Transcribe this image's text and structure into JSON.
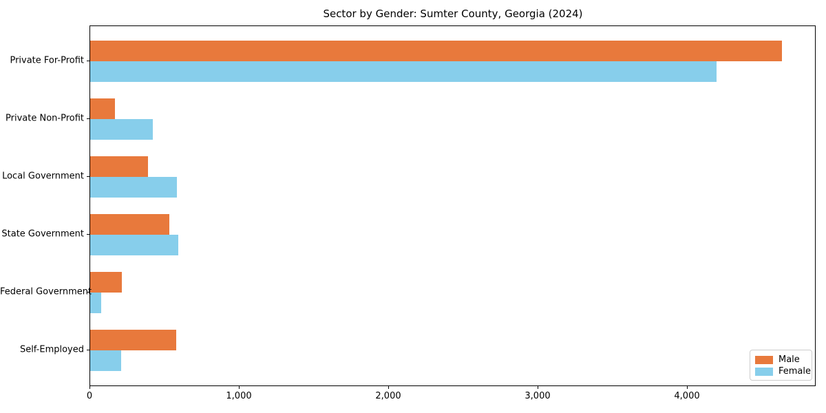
{
  "title": "Sector by Gender: Sumter County, Georgia (2024)",
  "colors": {
    "male_bar": "#e8793c",
    "female_bar": "#87ceeb",
    "axis": "#000000",
    "text": "#000000",
    "legend_border": "#cccccc",
    "background": "#ffffff"
  },
  "chart_data": {
    "type": "bar",
    "orientation": "horizontal",
    "title": "Sector by Gender: Sumter County, Georgia (2024)",
    "xlabel": "",
    "ylabel": "",
    "categories": [
      "Private For-Profit",
      "Private Non-Profit",
      "Local Government",
      "State Government",
      "Federal Government",
      "Self-Employed"
    ],
    "series": [
      {
        "name": "Male",
        "color": "#e8793c",
        "values": [
          4630,
          165,
          385,
          530,
          210,
          575
        ]
      },
      {
        "name": "Female",
        "color": "#87ceeb",
        "values": [
          4190,
          420,
          580,
          590,
          75,
          205
        ]
      }
    ],
    "xlim": [
      0,
      4860
    ],
    "x_ticks": [
      0,
      1000,
      2000,
      3000,
      4000
    ],
    "x_tick_labels": [
      "0",
      "1,000",
      "2,000",
      "3,000",
      "4,000"
    ],
    "grid": false,
    "legend": {
      "position": "lower right",
      "entries": [
        "Male",
        "Female"
      ]
    }
  }
}
